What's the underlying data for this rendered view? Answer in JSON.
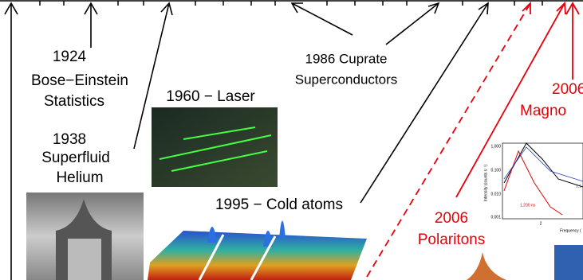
{
  "labels": [
    {
      "lines": [
        "1924",
        "Bose−Einstein",
        "Statistics"
      ]
    },
    {
      "lines": [
        "1938",
        "Superfluid",
        "Helium"
      ]
    },
    {
      "lines": [
        "1960 − Laser"
      ]
    },
    {
      "lines": [
        "1986 Cuprate",
        "Superconductors"
      ]
    },
    {
      "lines": [
        "1995 − Cold atoms"
      ]
    },
    {
      "lines": [
        "2006",
        "Polaritons"
      ]
    },
    {
      "lines": [
        "2006",
        "Magno"
      ]
    }
  ],
  "inset_plot": {
    "yticks": [
      "1,000",
      "0.100",
      "0.010",
      "0.001"
    ],
    "y_label": "Intensity (counts s⁻¹)",
    "x_tick": "2",
    "x_label": "Frequency (",
    "annotations": [
      "1,200 ns",
      "1,1"
    ]
  }
}
